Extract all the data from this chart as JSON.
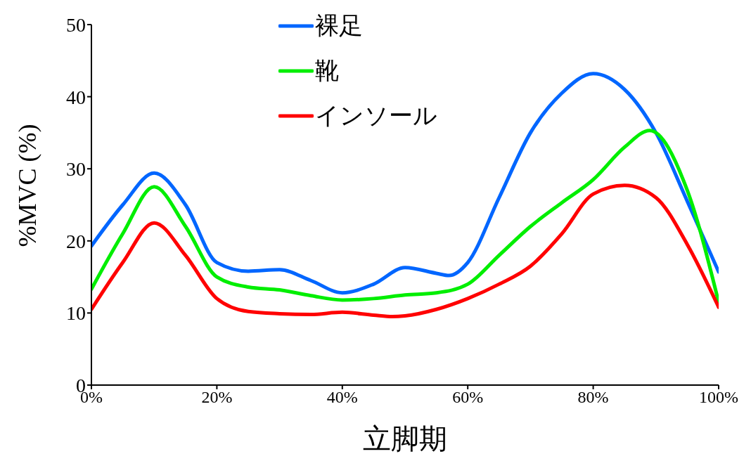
{
  "chart_data": {
    "type": "line",
    "xlabel": "立脚期",
    "ylabel": "%MVC (%)",
    "xlim": [
      0,
      100
    ],
    "xticks": [
      {
        "value": 0,
        "label": "0%"
      },
      {
        "value": 20,
        "label": "20%"
      },
      {
        "value": 40,
        "label": "40%"
      },
      {
        "value": 60,
        "label": "60%"
      },
      {
        "value": 80,
        "label": "80%"
      },
      {
        "value": 100,
        "label": "100%"
      }
    ],
    "ylim": [
      0,
      50
    ],
    "yticks": [
      0,
      10,
      20,
      30,
      40,
      50
    ],
    "grid": false,
    "legend": "top",
    "marker": "none",
    "line_style": "solid",
    "series": [
      {
        "name": "裸足",
        "color": "#0066ff",
        "x": [
          0,
          5,
          10,
          15,
          20,
          25,
          30,
          35,
          40,
          45,
          50,
          55,
          57,
          60,
          65,
          70,
          75,
          80,
          85,
          90,
          95,
          100
        ],
        "values": [
          19.3,
          25,
          29.4,
          25,
          17,
          15.8,
          16,
          14.5,
          12.8,
          14,
          16.3,
          15.5,
          15.2,
          17,
          26,
          35,
          40.5,
          43.2,
          41,
          35,
          25.5,
          15.7
        ]
      },
      {
        "name": "靴",
        "color": "#00ee00",
        "x": [
          0,
          5,
          10,
          15,
          20,
          25,
          30,
          35,
          40,
          45,
          50,
          55,
          60,
          65,
          70,
          75,
          80,
          85,
          89,
          95,
          100
        ],
        "values": [
          13.3,
          21,
          27.5,
          22,
          15,
          13.6,
          13.2,
          12.4,
          11.8,
          12,
          12.5,
          12.8,
          14,
          18,
          22,
          25.3,
          28.5,
          33,
          35.3,
          27,
          11.5
        ]
      },
      {
        "name": "インソール",
        "color": "#ff0000",
        "x": [
          0,
          5,
          10,
          15,
          20,
          25,
          30,
          35,
          40,
          45,
          48,
          50,
          55,
          60,
          65,
          70,
          75,
          80,
          85,
          90,
          95,
          100
        ],
        "values": [
          10.5,
          17,
          22.5,
          18,
          12,
          10.2,
          9.9,
          9.8,
          10.1,
          9.7,
          9.5,
          9.6,
          10.5,
          12,
          14,
          16.5,
          21,
          26.5,
          27.7,
          26,
          19.5,
          10.8
        ]
      }
    ]
  }
}
